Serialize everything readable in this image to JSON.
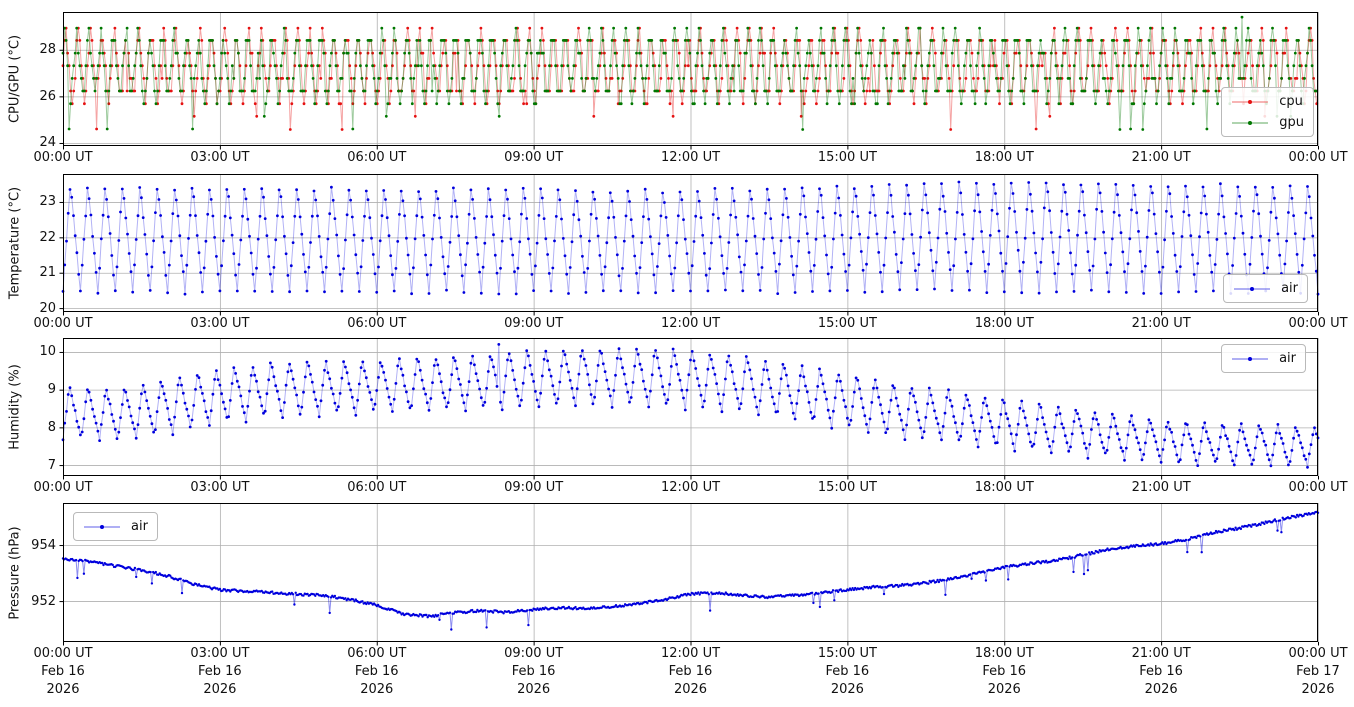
{
  "figure": {
    "background": "#ffffff",
    "grid_color": "#b0b0b0",
    "axis_color": "#000000",
    "text_color": "#111111"
  },
  "x_axis": {
    "tick_hours": [
      0,
      3,
      6,
      9,
      12,
      15,
      18,
      21,
      24
    ],
    "tick_labels": [
      "00:00 UT",
      "03:00 UT",
      "06:00 UT",
      "09:00 UT",
      "12:00 UT",
      "15:00 UT",
      "18:00 UT",
      "21:00 UT",
      "00:00 UT"
    ],
    "date_labels": [
      "Feb 16",
      "Feb 16",
      "Feb 16",
      "Feb 16",
      "Feb 16",
      "Feb 16",
      "Feb 16",
      "Feb 16",
      "Feb 17"
    ],
    "year_labels": [
      "2026",
      "2026",
      "2026",
      "2026",
      "2026",
      "2026",
      "2026",
      "2026",
      "2026"
    ]
  },
  "chart_data": [
    {
      "type": "line",
      "ylabel": "CPU/GPU (°C)",
      "ylim": [
        23.87,
        29.62
      ],
      "yticks": [
        24,
        26,
        28
      ],
      "x_range_hours": [
        0,
        24
      ],
      "grid": true,
      "legend": {
        "loc": "lower-right",
        "entries": [
          {
            "label": "cpu",
            "color": "#e51111"
          },
          {
            "label": "gpu",
            "color": "#007700"
          }
        ]
      },
      "series": [
        {
          "name": "cpu",
          "color": "#e51111",
          "line_alpha": 0.38,
          "waveform": {
            "kind": "quantized_osc",
            "sample_minutes": 1.75,
            "period_minutes": 14,
            "phase_offset_min": 0,
            "mid": 27.3,
            "swing": 1.35,
            "jitter": 0.8,
            "dip_prob": 0.026,
            "dip_depth": [
              1.0,
              2.4
            ],
            "quant_step": 0.5429,
            "quant_base": 24.057,
            "clamp": [
              24.58,
              28.93
            ],
            "seed": 11,
            "spikes": []
          }
        },
        {
          "name": "gpu",
          "color": "#007700",
          "line_alpha": 0.38,
          "waveform": {
            "kind": "quantized_osc",
            "sample_minutes": 1.75,
            "period_minutes": 14,
            "phase_offset_min": 1.6,
            "mid": 27.3,
            "swing": 1.35,
            "jitter": 0.8,
            "dip_prob": 0.02,
            "dip_depth": [
              1.0,
              2.2
            ],
            "quant_step": 0.5429,
            "quant_base": 24.057,
            "clamp": [
              24.58,
              28.93
            ],
            "seed": 23,
            "spikes": [
              {
                "hour": 22.56,
                "value": 29.4
              }
            ]
          }
        }
      ]
    },
    {
      "type": "line",
      "ylabel": "Temperature (°C)",
      "ylim": [
        19.89,
        23.79
      ],
      "yticks": [
        20,
        21,
        22,
        23
      ],
      "x_range_hours": [
        0,
        24
      ],
      "grid": true,
      "legend": {
        "loc": "lower-right",
        "entries": [
          {
            "label": "air",
            "color": "#0000dd"
          }
        ]
      },
      "series": [
        {
          "name": "air",
          "color": "#0000dd",
          "line_alpha": 0.3,
          "waveform": {
            "kind": "sawtooth_env",
            "sample_minutes": 2,
            "period_minutes": 20,
            "rise_fraction": 0.42,
            "noise": 0.12,
            "seed": 5,
            "mean_bp": [
              [
                0,
                22.0
              ],
              [
                12,
                21.95
              ],
              [
                18,
                22.1
              ],
              [
                24,
                22.0
              ]
            ],
            "amp_bp": [
              [
                0,
                1.55
              ],
              [
                12,
                1.5
              ],
              [
                19,
                1.62
              ],
              [
                24,
                1.55
              ]
            ],
            "spikes": []
          }
        }
      ]
    },
    {
      "type": "line",
      "ylabel": "Humidity (%)",
      "ylim": [
        6.71,
        10.37
      ],
      "yticks": [
        7,
        8,
        9,
        10
      ],
      "x_range_hours": [
        0,
        24
      ],
      "grid": true,
      "legend": {
        "loc": "upper-right",
        "entries": [
          {
            "label": "air",
            "color": "#0000dd"
          }
        ]
      },
      "series": [
        {
          "name": "air",
          "color": "#0000dd",
          "line_alpha": 0.3,
          "waveform": {
            "kind": "sawtooth_env",
            "sample_minutes": 2,
            "period_minutes": 21,
            "rise_fraction": 0.35,
            "noise": 0.1,
            "seed": 9,
            "mean_bp": [
              [
                0,
                8.4
              ],
              [
                1,
                8.35
              ],
              [
                2,
                8.55
              ],
              [
                3,
                8.85
              ],
              [
                4,
                9.0
              ],
              [
                5,
                9.05
              ],
              [
                6,
                9.1
              ],
              [
                7,
                9.15
              ],
              [
                8,
                9.2
              ],
              [
                9,
                9.3
              ],
              [
                10,
                9.35
              ],
              [
                11,
                9.35
              ],
              [
                12,
                9.3
              ],
              [
                13,
                9.15
              ],
              [
                14,
                8.95
              ],
              [
                15,
                8.7
              ],
              [
                16,
                8.45
              ],
              [
                17,
                8.3
              ],
              [
                18,
                8.1
              ],
              [
                19,
                7.95
              ],
              [
                20,
                7.8
              ],
              [
                21,
                7.65
              ],
              [
                22,
                7.55
              ],
              [
                23,
                7.55
              ],
              [
                24,
                7.5
              ]
            ],
            "amp_bp": [
              [
                0,
                0.7
              ],
              [
                3,
                0.75
              ],
              [
                6,
                0.72
              ],
              [
                9,
                0.8
              ],
              [
                12,
                0.8
              ],
              [
                15,
                0.75
              ],
              [
                18,
                0.68
              ],
              [
                21,
                0.6
              ],
              [
                24,
                0.55
              ]
            ],
            "spikes": [
              {
                "hour": 8.33,
                "value": 10.2
              }
            ]
          }
        }
      ]
    },
    {
      "type": "line",
      "ylabel": "Pressure (hPa)",
      "ylim": [
        950.54,
        955.5
      ],
      "yticks": [
        952,
        954
      ],
      "x_range_hours": [
        0,
        24
      ],
      "grid": true,
      "legend": {
        "loc": "upper-left",
        "entries": [
          {
            "label": "air",
            "color": "#0000dd"
          }
        ]
      },
      "series": [
        {
          "name": "air",
          "color": "#0000dd",
          "line_alpha": 0.45,
          "waveform": {
            "kind": "trend_noise",
            "sample_minutes": 1.5,
            "noise": 0.09,
            "seed": 3,
            "spike_prob_early": 0.015,
            "spike_prob_late": 0.035,
            "spike_prob_switch_hour": 12,
            "spike_depth": [
              0.15,
              0.7
            ],
            "trend_bp": [
              [
                0,
                953.5
              ],
              [
                0.5,
                953.42
              ],
              [
                1,
                953.25
              ],
              [
                1.5,
                953.1
              ],
              [
                2,
                952.9
              ],
              [
                2.5,
                952.6
              ],
              [
                3,
                952.4
              ],
              [
                3.5,
                952.35
              ],
              [
                4,
                952.3
              ],
              [
                4.5,
                952.25
              ],
              [
                5,
                952.2
              ],
              [
                5.5,
                952.05
              ],
              [
                6,
                951.85
              ],
              [
                6.5,
                951.55
              ],
              [
                7,
                951.45
              ],
              [
                7.5,
                951.6
              ],
              [
                8,
                951.65
              ],
              [
                8.5,
                951.6
              ],
              [
                9,
                951.7
              ],
              [
                9.5,
                951.75
              ],
              [
                10,
                951.75
              ],
              [
                10.5,
                951.8
              ],
              [
                11,
                951.9
              ],
              [
                11.5,
                952.05
              ],
              [
                12,
                952.25
              ],
              [
                12.5,
                952.3
              ],
              [
                13,
                952.2
              ],
              [
                13.5,
                952.15
              ],
              [
                14,
                952.2
              ],
              [
                14.5,
                952.3
              ],
              [
                15,
                952.4
              ],
              [
                15.5,
                952.5
              ],
              [
                16,
                952.55
              ],
              [
                16.5,
                952.65
              ],
              [
                17,
                952.8
              ],
              [
                17.5,
                953.0
              ],
              [
                18,
                953.2
              ],
              [
                18.5,
                953.35
              ],
              [
                19,
                953.45
              ],
              [
                19.5,
                953.65
              ],
              [
                20,
                953.85
              ],
              [
                20.5,
                953.95
              ],
              [
                21,
                954.05
              ],
              [
                21.5,
                954.2
              ],
              [
                22,
                954.45
              ],
              [
                22.5,
                954.6
              ],
              [
                23,
                954.8
              ],
              [
                23.5,
                955.0
              ],
              [
                24,
                955.15
              ]
            ],
            "spikes": []
          }
        }
      ]
    }
  ]
}
